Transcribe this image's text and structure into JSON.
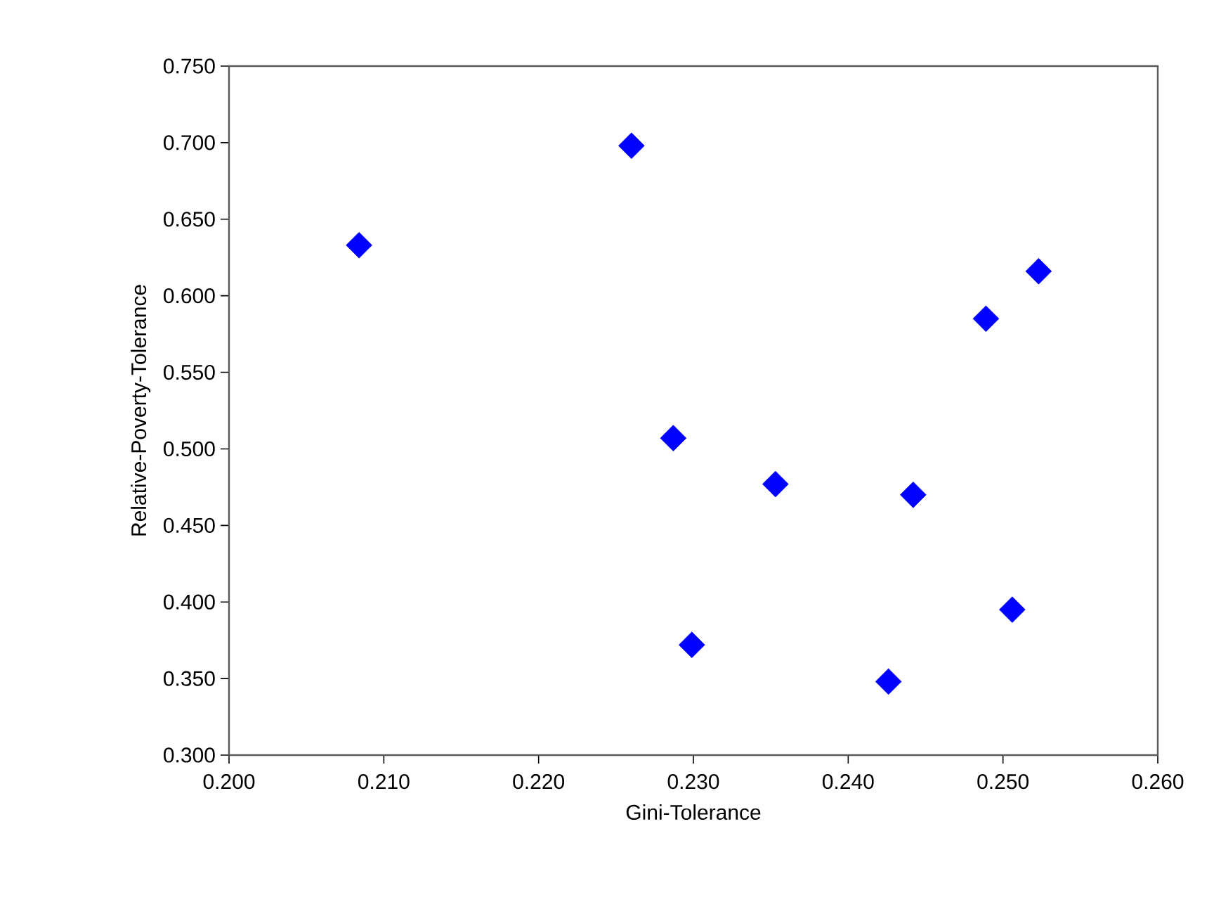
{
  "chart_data": {
    "type": "scatter",
    "xlabel": "Gini-Tolerance",
    "ylabel": "Relative-Poverty-Tolerance",
    "x": [
      0.2084,
      0.226,
      0.2523,
      0.2489,
      0.2287,
      0.2353,
      0.2442,
      0.2506,
      0.2299,
      0.2426
    ],
    "values": [
      0.633,
      0.698,
      0.616,
      0.585,
      0.507,
      0.477,
      0.47,
      0.395,
      0.372,
      0.348
    ],
    "color": "#0000ff",
    "marker": "diamond",
    "grid": false,
    "xlim": [
      0.2,
      0.26
    ],
    "ylim": [
      0.3,
      0.75
    ],
    "xticks": [
      {
        "value": 0.2,
        "label": "0.200"
      },
      {
        "value": 0.21,
        "label": "0.210"
      },
      {
        "value": 0.22,
        "label": "0.220"
      },
      {
        "value": 0.23,
        "label": "0.230"
      },
      {
        "value": 0.24,
        "label": "0.240"
      },
      {
        "value": 0.25,
        "label": "0.250"
      },
      {
        "value": 0.26,
        "label": "0.260"
      }
    ],
    "yticks": [
      {
        "value": 0.3,
        "label": "0.300"
      },
      {
        "value": 0.35,
        "label": "0.350"
      },
      {
        "value": 0.4,
        "label": "0.400"
      },
      {
        "value": 0.45,
        "label": "0.450"
      },
      {
        "value": 0.5,
        "label": "0.500"
      },
      {
        "value": 0.55,
        "label": "0.550"
      },
      {
        "value": 0.6,
        "label": "0.600"
      },
      {
        "value": 0.65,
        "label": "0.650"
      },
      {
        "value": 0.7,
        "label": "0.700"
      },
      {
        "value": 0.75,
        "label": "0.750"
      }
    ]
  }
}
